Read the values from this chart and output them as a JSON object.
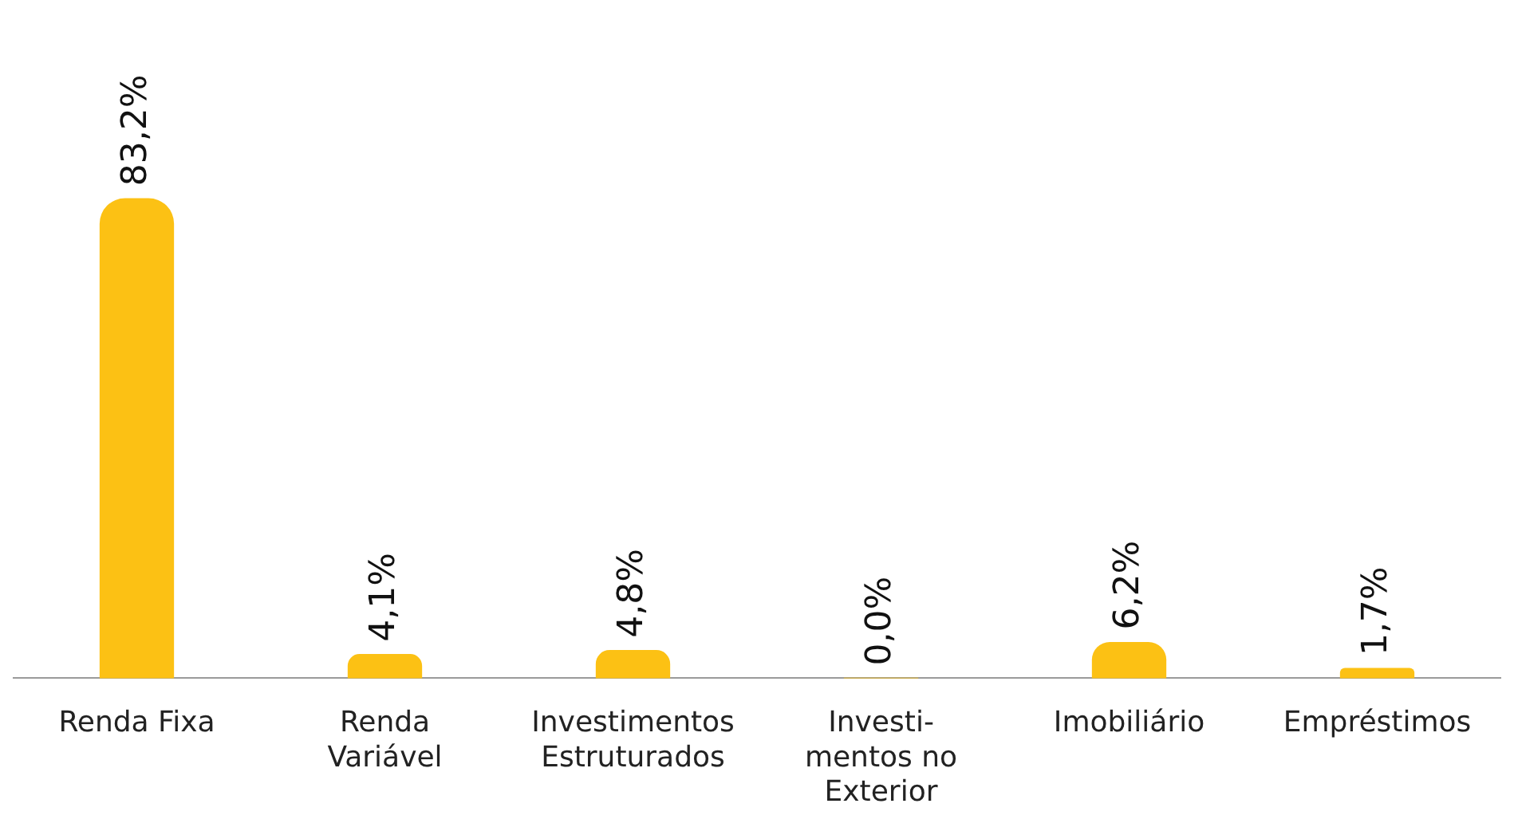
{
  "chart_data": {
    "type": "bar",
    "categories": [
      "Renda Fixa",
      "Renda\nVariável",
      "Investimentos\nEstruturados",
      "Investi-\nmentos no\nExterior",
      "Imobiliário",
      "Empréstimos"
    ],
    "values": [
      83.2,
      4.1,
      4.8,
      0.0,
      6.2,
      1.7
    ],
    "value_labels": [
      "83,2%",
      "4,1%",
      "4,8%",
      "0,0%",
      "6,2%",
      "1,7%"
    ],
    "color": "#fcc114"
  }
}
